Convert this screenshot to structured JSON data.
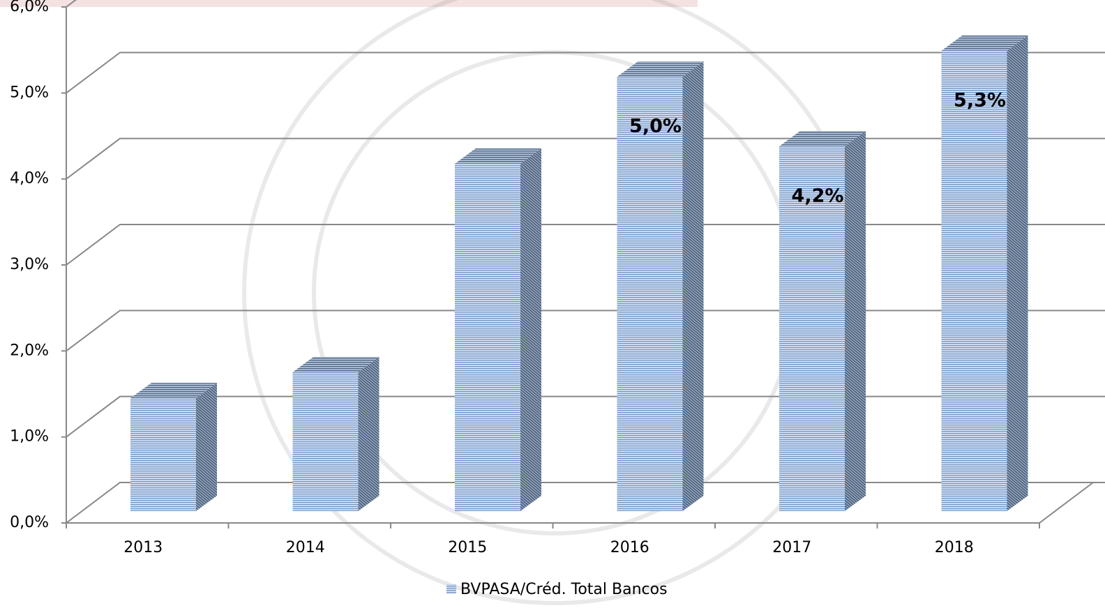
{
  "chart_data": {
    "type": "bar3d",
    "categories": [
      "2013",
      "2014",
      "2015",
      "2016",
      "2017",
      "2018"
    ],
    "series": [
      {
        "name": "BVPASA/Créd. Total Bancos",
        "color": "#4f81bd",
        "values": [
          1.3,
          1.6,
          4.0,
          5.0,
          4.2,
          5.3
        ],
        "value_labels": [
          null,
          null,
          null,
          "5,0%",
          "4,2%",
          "5,3%"
        ]
      }
    ],
    "ylim": [
      0,
      6
    ],
    "yticks": [
      {
        "value": 0,
        "label": "0,0%"
      },
      {
        "value": 1,
        "label": "1,0%"
      },
      {
        "value": 2,
        "label": "2,0%"
      },
      {
        "value": 3,
        "label": "3,0%"
      },
      {
        "value": 4,
        "label": "4,0%"
      },
      {
        "value": 5,
        "label": "5,0%"
      },
      {
        "value": 6,
        "label": "6,0%"
      }
    ],
    "grid": true,
    "legend": "bottom"
  }
}
